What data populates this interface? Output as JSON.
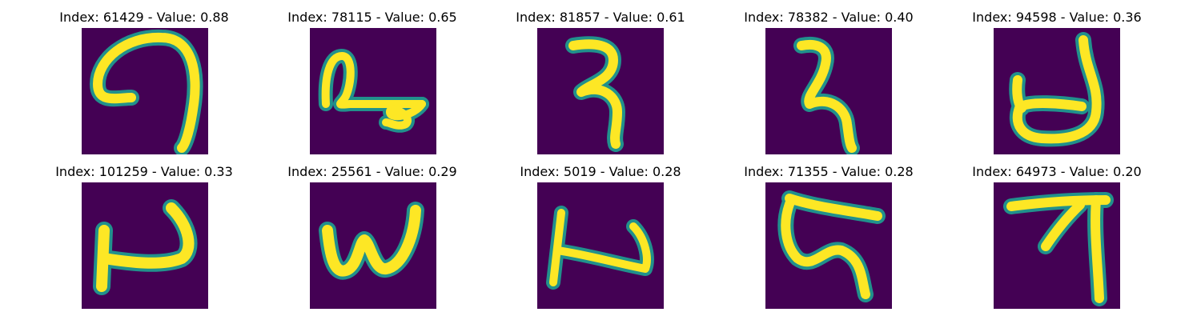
{
  "colors": {
    "background": "#440154",
    "edge": "#21918c",
    "stroke": "#fde725"
  },
  "panels": [
    {
      "title": "Index: 61429 - Value: 0.88",
      "index": "61429",
      "value": "0.88"
    },
    {
      "title": "Index: 78115 - Value: 0.65",
      "index": "78115",
      "value": "0.65"
    },
    {
      "title": "Index: 81857 - Value: 0.61",
      "index": "81857",
      "value": "0.61"
    },
    {
      "title": "Index: 78382 - Value: 0.40",
      "index": "78382",
      "value": "0.40"
    },
    {
      "title": "Index: 94598 - Value: 0.36",
      "index": "94598",
      "value": "0.36"
    },
    {
      "title": "Index: 101259 - Value: 0.33",
      "index": "101259",
      "value": "0.33"
    },
    {
      "title": "Index: 25561 - Value: 0.29",
      "index": "25561",
      "value": "0.29"
    },
    {
      "title": "Index: 5019 - Value: 0.28",
      "index": "5019",
      "value": "0.28"
    },
    {
      "title": "Index: 71355 - Value: 0.28",
      "index": "71355",
      "value": "0.28"
    },
    {
      "title": "Index: 64973 - Value: 0.20",
      "index": "64973",
      "value": "0.20"
    }
  ]
}
